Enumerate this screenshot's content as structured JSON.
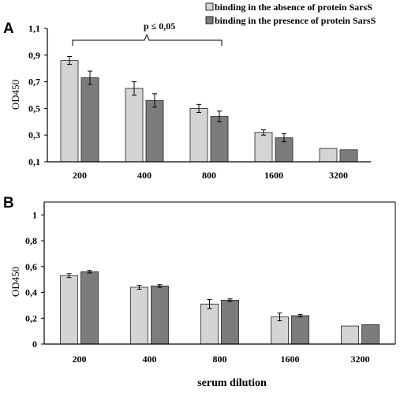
{
  "chart_data": [
    {
      "panel": "A",
      "type": "bar",
      "categories": [
        "200",
        "400",
        "800",
        "1600",
        "3200"
      ],
      "ylabel": "OD450",
      "xlabel": "",
      "ylim": [
        0.1,
        1.1
      ],
      "yticks": [
        "0,1",
        "0,3",
        "0,5",
        "0,7",
        "0,9",
        "1,1"
      ],
      "ytick_values": [
        0.1,
        0.3,
        0.5,
        0.7,
        0.9,
        1.1
      ],
      "series": [
        {
          "name": "binding in the absence of protein SarsS",
          "color": "#d4d4d4",
          "values": [
            0.86,
            0.65,
            0.5,
            0.32,
            0.2
          ],
          "errors": [
            0.03,
            0.05,
            0.03,
            0.02,
            0.0
          ]
        },
        {
          "name": "binding in the presence of protein SarsS",
          "color": "#7c7c7c",
          "values": [
            0.73,
            0.56,
            0.44,
            0.28,
            0.19
          ],
          "errors": [
            0.05,
            0.05,
            0.04,
            0.03,
            0.0
          ]
        }
      ],
      "annotation": "p ≤ 0,05",
      "legend_position": "top-right"
    },
    {
      "panel": "B",
      "type": "bar",
      "categories": [
        "200",
        "400",
        "800",
        "1600",
        "3200"
      ],
      "ylabel": "OD450",
      "xlabel": "serum dilution",
      "ylim": [
        0,
        1.1
      ],
      "yticks": [
        "0",
        "0,2",
        "0,4",
        "0,6",
        "0,8",
        "1"
      ],
      "ytick_values": [
        0,
        0.2,
        0.4,
        0.6,
        0.8,
        1.0
      ],
      "series": [
        {
          "color": "#d4d4d4",
          "values": [
            0.53,
            0.44,
            0.31,
            0.21,
            0.14
          ],
          "errors": [
            0.015,
            0.015,
            0.035,
            0.03,
            0.0
          ]
        },
        {
          "color": "#7c7c7c",
          "values": [
            0.56,
            0.45,
            0.34,
            0.22,
            0.15
          ],
          "errors": [
            0.01,
            0.01,
            0.01,
            0.01,
            0.0
          ]
        }
      ]
    }
  ]
}
